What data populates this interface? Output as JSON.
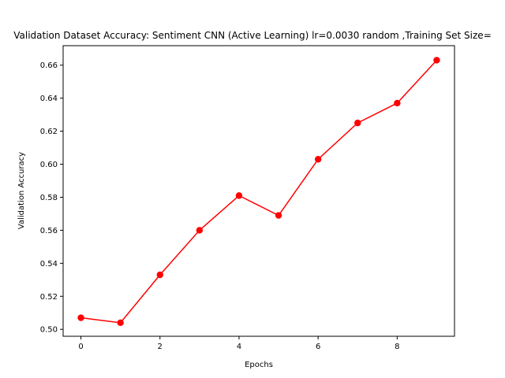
{
  "chart_data": {
    "type": "line",
    "title": "Validation Dataset Accuracy: Sentiment CNN (Active Learning) lr=0.0030 random ,Training Set Size=",
    "xlabel": "Epochs",
    "ylabel": "Validation Accuracy",
    "xlim": [
      -0.45,
      9.45
    ],
    "ylim": [
      0.4958,
      0.6718
    ],
    "x_ticks": [
      "0",
      "2",
      "4",
      "6",
      "8"
    ],
    "y_ticks": [
      "0.50",
      "0.52",
      "0.54",
      "0.56",
      "0.58",
      "0.60",
      "0.62",
      "0.64",
      "0.66"
    ],
    "grid": false,
    "series": [
      {
        "color": "#ff0000",
        "marker": "circle",
        "x": [
          0,
          1,
          2,
          3,
          4,
          5,
          6,
          7,
          8,
          9
        ],
        "y": [
          0.507,
          0.504,
          0.533,
          0.56,
          0.581,
          0.569,
          0.603,
          0.625,
          0.637,
          0.663
        ]
      }
    ]
  }
}
